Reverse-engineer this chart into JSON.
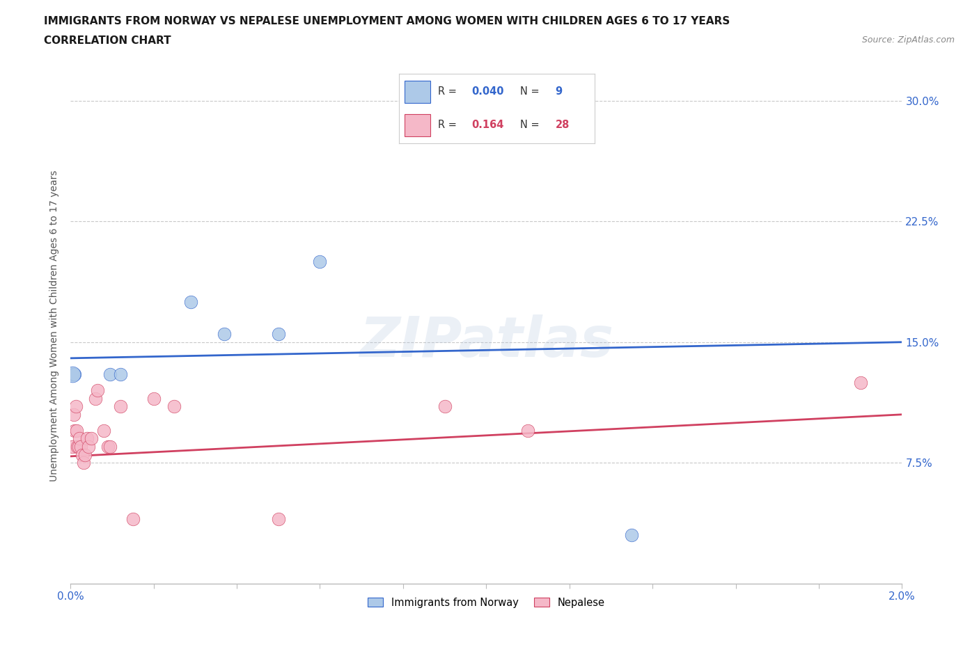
{
  "title_line1": "IMMIGRANTS FROM NORWAY VS NEPALESE UNEMPLOYMENT AMONG WOMEN WITH CHILDREN AGES 6 TO 17 YEARS",
  "title_line2": "CORRELATION CHART",
  "source_text": "Source: ZipAtlas.com",
  "ylabel": "Unemployment Among Women with Children Ages 6 to 17 years",
  "xlim": [
    0.0,
    0.02
  ],
  "ylim": [
    0.0,
    0.32
  ],
  "xticks": [
    0.0,
    0.002,
    0.004,
    0.006,
    0.008,
    0.01,
    0.012,
    0.014,
    0.016,
    0.018,
    0.02
  ],
  "ytick_vals": [
    0.0,
    0.075,
    0.15,
    0.225,
    0.3
  ],
  "ytick_labels": [
    "",
    "7.5%",
    "15.0%",
    "22.5%",
    "30.0%"
  ],
  "xtick_labels": [
    "0.0%",
    "",
    "",
    "",
    "",
    "",
    "",
    "",
    "",
    "",
    "2.0%"
  ],
  "norway_x": [
    5e-05,
    0.0001,
    0.00095,
    0.0012,
    0.0029,
    0.0037,
    0.005,
    0.006,
    0.0135
  ],
  "norway_y": [
    0.13,
    0.13,
    0.13,
    0.13,
    0.175,
    0.155,
    0.155,
    0.2,
    0.03
  ],
  "nepalese_x": [
    5e-05,
    8e-05,
    0.0001,
    0.00013,
    0.00015,
    0.00017,
    0.0002,
    0.00022,
    0.00025,
    0.00028,
    0.00032,
    0.00035,
    0.0004,
    0.00043,
    0.0005,
    0.0006,
    0.00065,
    0.0008,
    0.0009,
    0.00095,
    0.0012,
    0.0015,
    0.002,
    0.0025,
    0.005,
    0.009,
    0.011,
    0.019
  ],
  "nepalese_y": [
    0.085,
    0.105,
    0.095,
    0.11,
    0.095,
    0.085,
    0.085,
    0.09,
    0.085,
    0.08,
    0.075,
    0.08,
    0.09,
    0.085,
    0.09,
    0.115,
    0.12,
    0.095,
    0.085,
    0.085,
    0.11,
    0.04,
    0.115,
    0.11,
    0.04,
    0.11,
    0.095,
    0.125
  ],
  "norway_R": 0.04,
  "norway_N": 9,
  "nepalese_R": 0.164,
  "nepalese_N": 28,
  "norway_color": "#adc9e8",
  "norway_line_color": "#3366cc",
  "nepalese_color": "#f5b8c8",
  "nepalese_line_color": "#d04060",
  "marker_size": 180,
  "grid_color": "#c8c8c8",
  "watermark_text": "ZIPatlas",
  "background_color": "#ffffff",
  "legend_label_norway": "Immigrants from Norway",
  "legend_label_nepalese": "Nepalese"
}
